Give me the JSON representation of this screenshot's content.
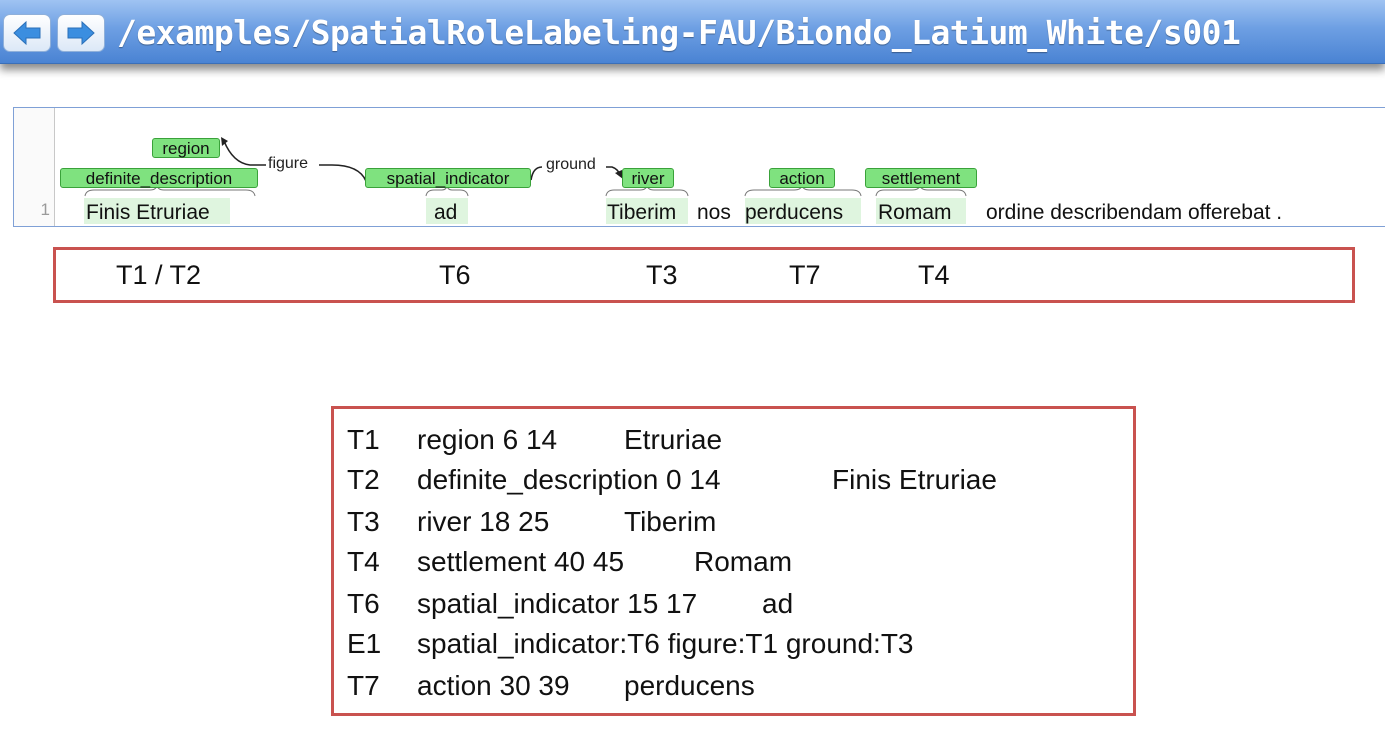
{
  "nav": {
    "back_icon": "arrow-left-icon",
    "forward_icon": "arrow-right-icon",
    "document_path": "/examples/SpatialRoleLabeling-FAU/Biondo_Latium_White/s001"
  },
  "colors": {
    "span_label_bg": "#7fe27f",
    "span_label_border": "#3aa23a",
    "box_border": "#c9524f",
    "topbar": "#4a83d3"
  },
  "visualization": {
    "line_number": "1",
    "span_labels": {
      "region": "region",
      "definite_description": "definite_description",
      "spatial_indicator": "spatial_indicator",
      "river": "river",
      "action": "action",
      "settlement": "settlement"
    },
    "arc_labels": {
      "figure": "figure",
      "ground": "ground"
    },
    "tokens": {
      "finis_etruriae": "Finis Etruriae",
      "ad": "ad",
      "tiberim": "Tiberim",
      "nos": "nos",
      "perducens": "perducens",
      "romam": "Romam",
      "rest": "ordine describendam offerebat ."
    }
  },
  "id_box": {
    "t1_t2": "T1 / T2",
    "t6": "T6",
    "t3": "T3",
    "t7": "T7",
    "t4": "T4"
  },
  "annotations": [
    {
      "id": "T1",
      "spec": "region 6 14",
      "text": "Etruriae"
    },
    {
      "id": "T2",
      "spec": "definite_description 0 14",
      "text": "Finis Etruriae"
    },
    {
      "id": "T3",
      "spec": "river 18 25",
      "text": "Tiberim"
    },
    {
      "id": "T4",
      "spec": "settlement 40 45",
      "text": "Romam"
    },
    {
      "id": "T6",
      "spec": "spatial_indicator 15 17",
      "text": "ad"
    },
    {
      "id": "E1",
      "spec": "spatial_indicator:T6 figure:T1 ground:T3",
      "text": ""
    },
    {
      "id": "T7",
      "spec": "action 30 39",
      "text": "perducens"
    }
  ]
}
